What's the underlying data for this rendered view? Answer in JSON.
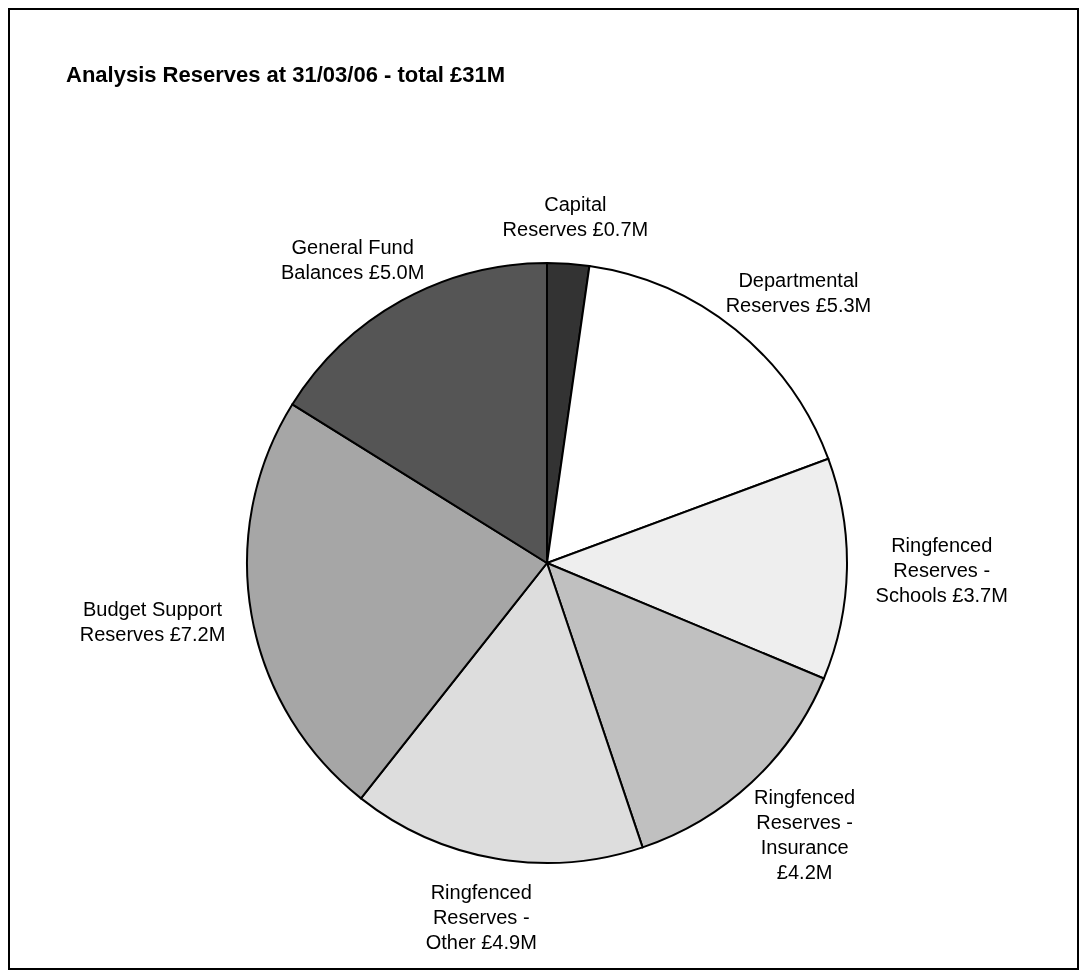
{
  "chart_data": {
    "type": "pie",
    "title": "Analysis Reserves at 31/03/06 - total £31M",
    "categories": [
      "Capital Reserves",
      "Departmental Reserves",
      "Ringfenced Reserves - Schools",
      "Ringfenced Reserves - Insurance",
      "Ringfenced Reserves - Other",
      "Budget Support Reserves",
      "General Fund Balances"
    ],
    "values": [
      0.7,
      5.3,
      3.7,
      4.2,
      4.9,
      7.2,
      5.0
    ],
    "value_labels": [
      "£0.7M",
      "£5.3M",
      "£3.7M",
      "£4.2M",
      "£4.9M",
      "£7.2M",
      "£5.0M"
    ],
    "colors": [
      "#333333",
      "#ffffff",
      "#eeeeee",
      "#c0c0c0",
      "#dddddd",
      "#a6a6a6",
      "#555555"
    ]
  }
}
